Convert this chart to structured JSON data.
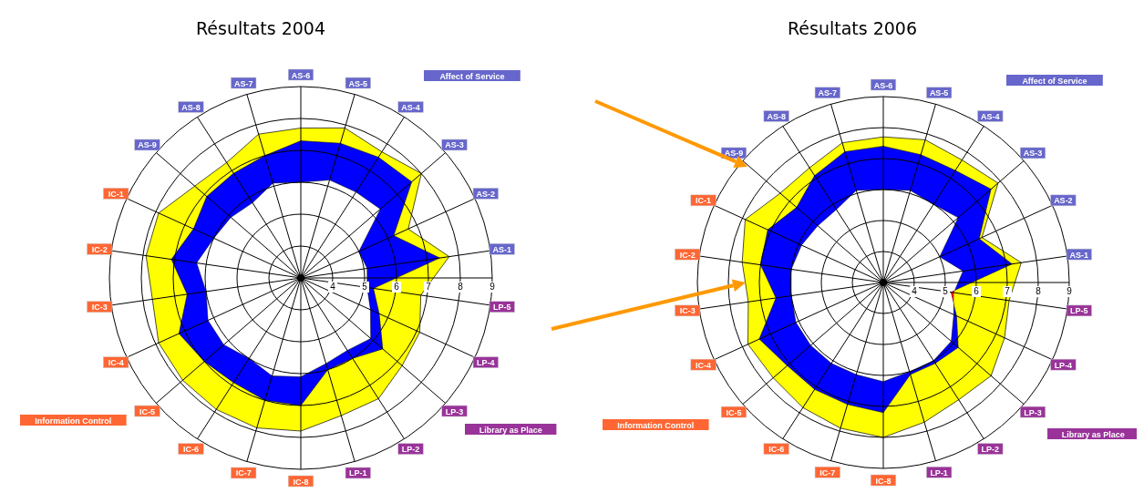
{
  "chart_data": [
    {
      "type": "radar",
      "title": "Résultats 2004",
      "categories": [
        "AS-6",
        "AS-5",
        "AS-4",
        "AS-3",
        "AS-2",
        "AS-1",
        "LP-5",
        "LP-4",
        "LP-3",
        "LP-2",
        "LP-1",
        "IC-8",
        "IC-7",
        "IC-6",
        "IC-5",
        "IC-4",
        "IC-3",
        "IC-2",
        "IC-1",
        "AS-9",
        "AS-8",
        "AS-7"
      ],
      "colors": [
        "#6666cc",
        "#6666cc",
        "#6666cc",
        "#6666cc",
        "#6666cc",
        "#6666cc",
        "#993399",
        "#993399",
        "#993399",
        "#993399",
        "#993399",
        "#ff6633",
        "#ff6633",
        "#ff6633",
        "#ff6633",
        "#ff6633",
        "#ff6633",
        "#ff6633",
        "#ff6633",
        "#6666cc",
        "#6666cc",
        "#6666cc"
      ],
      "series": [
        {
          "color": "#ffff00",
          "values": [
            7.7,
            7.9,
            7.7,
            8.0,
            6.7,
            7.7,
            6.8,
            7.1,
            7.2,
            7.5,
            7.5,
            7.8,
            7.9,
            7.9,
            7.9,
            7.9,
            7.7,
            7.9,
            7.9,
            7.4,
            7.3,
            7.7
          ]
        },
        {
          "color": "#0000ff",
          "values": [
            7.3,
            7.4,
            7.5,
            7.6,
            6.2,
            7.4,
            5.3,
            5.7,
            6.4,
            6.0,
            6.0,
            7.0,
            7.0,
            6.9,
            7.0,
            7.2,
            6.6,
            7.1,
            6.7,
            6.9,
            6.9,
            7.0
          ]
        },
        {
          "color": "#ff0000",
          "values": [
            6.0,
            6.2,
            6.2,
            6.3,
            5.0,
            5.1,
            5.1,
            5.4,
            5.9,
            5.7,
            5.8,
            6.1,
            6.2,
            6.0,
            6.2,
            6.2,
            6.0,
            6.3,
            6.0,
            5.9,
            5.8,
            6.1
          ]
        }
      ],
      "ylim": [
        3,
        9
      ],
      "yticks": [
        4,
        5,
        6,
        7,
        8,
        9
      ],
      "grid": true,
      "annotations": [
        "Affect of Service",
        "Library as Place",
        "Information Control"
      ]
    },
    {
      "type": "radar",
      "title": "Résultats 2006",
      "categories": [
        "AS-6",
        "AS-5",
        "AS-4",
        "AS-3",
        "AS-2",
        "AS-1",
        "LP-5",
        "LP-4",
        "LP-3",
        "LP-2",
        "LP-1",
        "IC-8",
        "IC-7",
        "IC-6",
        "IC-5",
        "IC-4",
        "IC-3",
        "IC-2",
        "IC-1",
        "AS-9",
        "AS-8",
        "AS-7"
      ],
      "colors": [
        "#6666cc",
        "#6666cc",
        "#6666cc",
        "#6666cc",
        "#6666cc",
        "#6666cc",
        "#993399",
        "#993399",
        "#993399",
        "#993399",
        "#993399",
        "#ff6633",
        "#ff6633",
        "#ff6633",
        "#ff6633",
        "#ff6633",
        "#ff6633",
        "#ff6633",
        "#ff6633",
        "#6666cc",
        "#6666cc",
        "#6666cc"
      ],
      "series": [
        {
          "color": "#ffff00",
          "values": [
            7.7,
            7.8,
            7.7,
            7.9,
            6.5,
            7.5,
            7.1,
            7.3,
            7.6,
            7.5,
            7.7,
            8.0,
            7.9,
            7.8,
            7.7,
            7.8,
            7.4,
            7.6,
            7.9,
            7.4,
            7.4,
            7.7
          ]
        },
        {
          "color": "#0000ff",
          "values": [
            7.4,
            7.3,
            7.3,
            7.6,
            6.4,
            7.2,
            5.2,
            5.6,
            6.2,
            6.1,
            6.1,
            7.2,
            7.1,
            7.1,
            7.1,
            7.4,
            6.5,
            7.0,
            7.1,
            6.7,
            7.1,
            7.4
          ]
        },
        {
          "color": "#ff0000",
          "values": [
            6.0,
            6.1,
            6.0,
            6.2,
            5.0,
            5.6,
            5.3,
            5.5,
            5.9,
            6.0,
            6.0,
            6.2,
            6.1,
            6.1,
            6.1,
            6.1,
            6.0,
            6.0,
            5.9,
            5.8,
            5.8,
            6.1
          ]
        }
      ],
      "ylim": [
        3,
        9
      ],
      "yticks": [
        4,
        5,
        6,
        7,
        8,
        9
      ],
      "grid": true,
      "annotations": [
        "Affect of Service",
        "Library as Place",
        "Information Control"
      ]
    }
  ]
}
